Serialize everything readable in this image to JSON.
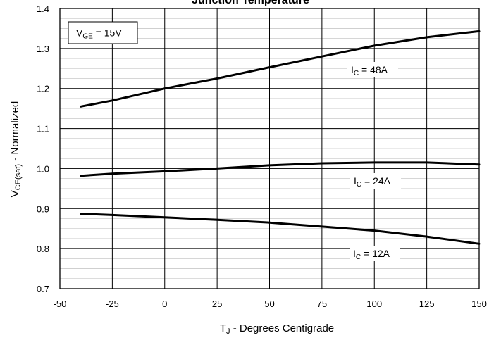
{
  "chart_data": {
    "type": "line",
    "title": "Junction Temperature",
    "xlabel": {
      "main": "T",
      "sub": "J",
      "rest": " - Degrees Centigrade"
    },
    "ylabel": {
      "main": "V",
      "sub": "CE(sat)",
      "rest": " - Normalized"
    },
    "xlim": [
      -50,
      150
    ],
    "ylim": [
      0.7,
      1.4
    ],
    "xticks": [
      -50,
      -25,
      0,
      25,
      50,
      75,
      100,
      125,
      150
    ],
    "yticks": [
      "0.7",
      "0.8",
      "0.9",
      "1.0",
      "1.1",
      "1.2",
      "1.3",
      "1.4"
    ],
    "grid": true,
    "legend_box": {
      "main": "V",
      "sub": "GE",
      "rest": " = 15V"
    },
    "x": [
      -40,
      -25,
      0,
      25,
      50,
      75,
      100,
      125,
      150
    ],
    "series": [
      {
        "label": {
          "main": "I",
          "sub": "C",
          "rest": " = 48A"
        },
        "values": [
          1.155,
          1.17,
          1.2,
          1.225,
          1.253,
          1.28,
          1.307,
          1.328,
          1.343
        ]
      },
      {
        "label": {
          "main": "I",
          "sub": "C",
          "rest": " = 24A"
        },
        "values": [
          0.982,
          0.987,
          0.993,
          1.0,
          1.008,
          1.013,
          1.015,
          1.015,
          1.01
        ]
      },
      {
        "label": {
          "main": "I",
          "sub": "C",
          "rest": " = 12A"
        },
        "values": [
          0.887,
          0.884,
          0.878,
          0.872,
          0.865,
          0.855,
          0.845,
          0.83,
          0.812
        ]
      }
    ]
  }
}
